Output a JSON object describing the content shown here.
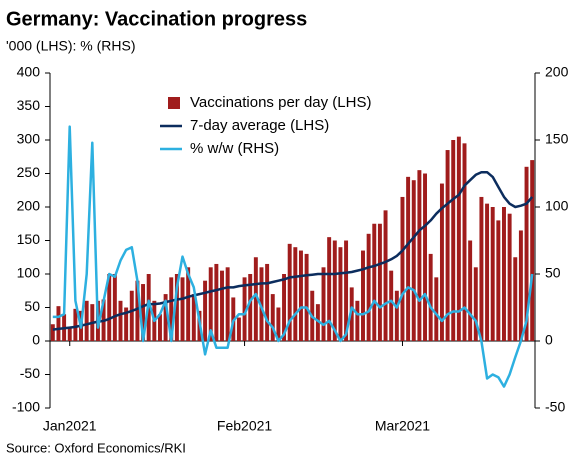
{
  "chart_data": {
    "type": "bar_line_dual",
    "title": "Germany: Vaccination progress",
    "subtitle": "'000 (LHS): % (RHS)",
    "source": "Source: Oxford Economics/RKI",
    "categories": [
      null,
      null,
      null,
      "Jan2021",
      null,
      null,
      null,
      null,
      null,
      null,
      null,
      null,
      null,
      null,
      null,
      null,
      null,
      null,
      null,
      null,
      null,
      null,
      null,
      null,
      null,
      null,
      null,
      null,
      null,
      null,
      null,
      null,
      null,
      null,
      "Feb2021",
      null,
      null,
      null,
      null,
      null,
      null,
      null,
      null,
      null,
      null,
      null,
      null,
      null,
      null,
      null,
      null,
      null,
      null,
      null,
      null,
      null,
      null,
      null,
      null,
      null,
      null,
      null,
      "Mar2021",
      null,
      null,
      null,
      null,
      null,
      null,
      null,
      null,
      null,
      null,
      null,
      null,
      null,
      null,
      null,
      null,
      null,
      null,
      null,
      null,
      null,
      null,
      null
    ],
    "ylim": [
      -100,
      400
    ],
    "yticks": [
      -100,
      -50,
      0,
      50,
      100,
      150,
      200,
      250,
      300,
      350,
      400
    ],
    "y2lim": [
      -50,
      200
    ],
    "y2ticks": [
      -50,
      0,
      50,
      100,
      150,
      200
    ],
    "series": [
      {
        "name": "Vaccinations per day (LHS)",
        "kind": "bar",
        "color": "#a01c1c",
        "values": [
          25,
          52,
          40,
          20,
          48,
          45,
          60,
          55,
          60,
          62,
          100,
          100,
          60,
          50,
          75,
          90,
          85,
          100,
          60,
          40,
          70,
          95,
          100,
          95,
          110,
          70,
          45,
          90,
          110,
          115,
          105,
          110,
          65,
          35,
          95,
          100,
          125,
          110,
          115,
          70,
          50,
          100,
          145,
          140,
          135,
          130,
          75,
          55,
          110,
          155,
          150,
          140,
          150,
          80,
          60,
          135,
          160,
          175,
          175,
          195,
          105,
          75,
          215,
          245,
          240,
          255,
          250,
          130,
          95,
          235,
          285,
          300,
          305,
          295,
          150,
          110,
          215,
          205,
          200,
          180,
          200,
          190,
          125,
          165,
          260,
          270
        ]
      },
      {
        "name": "7-day average (LHS)",
        "kind": "line",
        "color": "#0c2d5e",
        "values": [
          17,
          18,
          19,
          20,
          21,
          23,
          25,
          27,
          29,
          30,
          33,
          37,
          40,
          42,
          45,
          48,
          52,
          55,
          55,
          56,
          58,
          60,
          62,
          63,
          66,
          68,
          70,
          72,
          74,
          76,
          78,
          80,
          80,
          82,
          83,
          84,
          85,
          86,
          86,
          88,
          90,
          92,
          95,
          96,
          97,
          98,
          99,
          100,
          100,
          100,
          100,
          101,
          102,
          103,
          105,
          107,
          110,
          112,
          115,
          118,
          122,
          127,
          135,
          145,
          155,
          165,
          172,
          180,
          190,
          198,
          205,
          212,
          218,
          232,
          240,
          248,
          252,
          252,
          245,
          230,
          215,
          205,
          200,
          202,
          205,
          215
        ]
      },
      {
        "name": "% w/w (RHS)",
        "kind": "line",
        "axis": "y2",
        "color": "#2db0e0",
        "values": [
          18,
          18,
          20,
          160,
          30,
          10,
          50,
          148,
          10,
          30,
          50,
          48,
          60,
          68,
          70,
          45,
          0,
          30,
          15,
          20,
          30,
          0,
          40,
          63,
          50,
          40,
          15,
          -10,
          8,
          -5,
          -5,
          -5,
          15,
          20,
          20,
          30,
          35,
          25,
          15,
          10,
          0,
          5,
          15,
          20,
          25,
          25,
          18,
          15,
          12,
          15,
          8,
          0,
          5,
          25,
          20,
          20,
          22,
          30,
          25,
          28,
          30,
          25,
          35,
          40,
          38,
          30,
          35,
          25,
          20,
          15,
          20,
          22,
          22,
          25,
          20,
          15,
          0,
          -28,
          -25,
          -27,
          -34,
          -25,
          -12,
          0,
          15,
          50
        ]
      }
    ]
  }
}
